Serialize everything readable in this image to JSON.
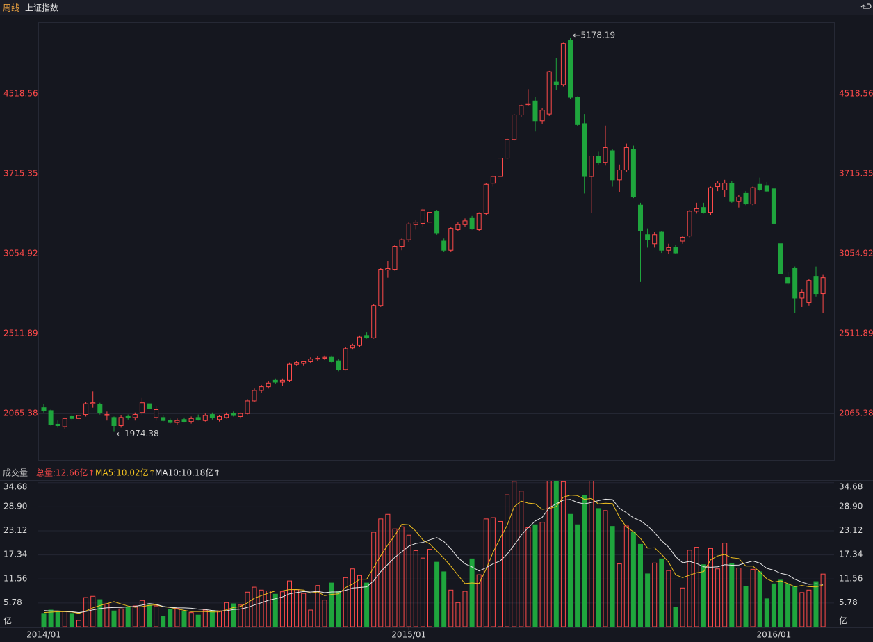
{
  "chart_data": [
    {
      "type": "candlestick",
      "period": "周线",
      "title": "上证指数",
      "log": true,
      "grid": true,
      "up_color": "#ff4a4a",
      "down_color": "#1fa53d",
      "ylim": [
        1843,
        5384
      ],
      "yticks": [
        2065.38,
        2511.89,
        3054.92,
        3715.35,
        4518.56
      ],
      "max_label": 5178.19,
      "min_label": 1974.38,
      "categories": [
        "2014/01",
        null,
        null,
        null,
        null,
        null,
        null,
        null,
        null,
        null,
        null,
        null,
        null,
        null,
        null,
        null,
        null,
        null,
        null,
        null,
        null,
        null,
        null,
        null,
        null,
        null,
        null,
        null,
        null,
        null,
        null,
        null,
        null,
        null,
        null,
        null,
        null,
        null,
        null,
        null,
        null,
        null,
        null,
        null,
        null,
        null,
        null,
        null,
        null,
        null,
        null,
        null,
        "2015/01",
        null,
        null,
        null,
        null,
        null,
        null,
        null,
        null,
        null,
        null,
        null,
        null,
        null,
        null,
        null,
        null,
        null,
        null,
        null,
        null,
        null,
        null,
        null,
        null,
        null,
        null,
        null,
        null,
        null,
        null,
        null,
        null,
        null,
        null,
        null,
        null,
        null,
        null,
        null,
        null,
        null,
        null,
        null,
        null,
        null,
        null,
        null,
        null,
        null,
        null,
        null,
        "2016/01",
        null,
        null,
        null,
        null,
        null,
        null,
        null
      ],
      "values": [
        [
          2095,
          2115,
          2070,
          2080
        ],
        [
          2080,
          2085,
          2005,
          2010
        ],
        [
          2012,
          2030,
          1995,
          2005
        ],
        [
          2000,
          2045,
          1990,
          2040
        ],
        [
          2050,
          2060,
          2030,
          2040
        ],
        [
          2040,
          2070,
          2030,
          2055
        ],
        [
          2060,
          2125,
          2050,
          2115
        ],
        [
          2115,
          2180,
          2095,
          2120
        ],
        [
          2110,
          2120,
          2060,
          2070
        ],
        [
          2055,
          2075,
          2030,
          2060
        ],
        [
          2045,
          2050,
          1974.38,
          2005
        ],
        [
          2005,
          2055,
          1995,
          2045
        ],
        [
          2050,
          2060,
          2035,
          2045
        ],
        [
          2045,
          2070,
          2030,
          2060
        ],
        [
          2070,
          2145,
          2060,
          2120
        ],
        [
          2115,
          2125,
          2080,
          2090
        ],
        [
          2045,
          2100,
          2030,
          2085
        ],
        [
          2045,
          2055,
          2025,
          2030
        ],
        [
          2030,
          2040,
          2015,
          2020
        ],
        [
          2020,
          2040,
          2010,
          2030
        ],
        [
          2035,
          2045,
          2020,
          2025
        ],
        [
          2025,
          2050,
          2015,
          2040
        ],
        [
          2045,
          2060,
          2030,
          2035
        ],
        [
          2030,
          2065,
          2025,
          2055
        ],
        [
          2060,
          2070,
          2035,
          2045
        ],
        [
          2035,
          2055,
          2025,
          2050
        ],
        [
          2045,
          2070,
          2040,
          2060
        ],
        [
          2065,
          2075,
          2050,
          2055
        ],
        [
          2050,
          2070,
          2040,
          2065
        ],
        [
          2065,
          2140,
          2060,
          2130
        ],
        [
          2130,
          2195,
          2125,
          2185
        ],
        [
          2185,
          2215,
          2170,
          2205
        ],
        [
          2205,
          2235,
          2195,
          2225
        ],
        [
          2240,
          2250,
          2220,
          2230
        ],
        [
          2230,
          2250,
          2210,
          2240
        ],
        [
          2240,
          2340,
          2230,
          2330
        ],
        [
          2330,
          2350,
          2320,
          2340
        ],
        [
          2335,
          2350,
          2320,
          2345
        ],
        [
          2345,
          2370,
          2335,
          2360
        ],
        [
          2360,
          2375,
          2350,
          2365
        ],
        [
          2365,
          2380,
          2355,
          2370
        ],
        [
          2370,
          2380,
          2340,
          2345
        ],
        [
          2350,
          2360,
          2290,
          2300
        ],
        [
          2300,
          2430,
          2295,
          2420
        ],
        [
          2425,
          2450,
          2415,
          2440
        ],
        [
          2440,
          2500,
          2430,
          2490
        ],
        [
          2500,
          2520,
          2480,
          2485
        ],
        [
          2485,
          2700,
          2480,
          2690
        ],
        [
          2690,
          2950,
          2680,
          2940
        ],
        [
          2935,
          3000,
          2880,
          2945
        ],
        [
          2940,
          3120,
          2930,
          3110
        ],
        [
          3110,
          3170,
          3080,
          3160
        ],
        [
          3160,
          3300,
          3140,
          3285
        ],
        [
          3280,
          3320,
          3240,
          3300
        ],
        [
          3290,
          3410,
          3260,
          3400
        ],
        [
          3300,
          3420,
          3260,
          3380
        ],
        [
          3390,
          3400,
          3200,
          3210
        ],
        [
          3150,
          3170,
          3070,
          3080
        ],
        [
          3080,
          3260,
          3070,
          3250
        ],
        [
          3240,
          3300,
          3230,
          3280
        ],
        [
          3280,
          3330,
          3260,
          3310
        ],
        [
          3330,
          3350,
          3240,
          3250
        ],
        [
          3240,
          3380,
          3230,
          3370
        ],
        [
          3370,
          3630,
          3360,
          3620
        ],
        [
          3630,
          3700,
          3600,
          3690
        ],
        [
          3690,
          3870,
          3680,
          3860
        ],
        [
          3860,
          4050,
          3850,
          4040
        ],
        [
          4040,
          4300,
          4030,
          4290
        ],
        [
          4290,
          4400,
          4270,
          4390
        ],
        [
          4400,
          4570,
          4390,
          4410
        ],
        [
          4440,
          4480,
          4120,
          4230
        ],
        [
          4230,
          4360,
          4200,
          4340
        ],
        [
          4300,
          4780,
          4280,
          4770
        ],
        [
          4650,
          4930,
          4560,
          4620
        ],
        [
          4620,
          5120,
          4600,
          5110
        ],
        [
          5150,
          5178.19,
          4460,
          4480
        ],
        [
          4480,
          4490,
          4180,
          4190
        ],
        [
          4200,
          4300,
          3540,
          3690
        ],
        [
          3690,
          3880,
          3373,
          3880
        ],
        [
          3880,
          3920,
          3800,
          3820
        ],
        [
          3820,
          4180,
          3790,
          3960
        ],
        [
          3930,
          3950,
          3600,
          3660
        ],
        [
          3660,
          3800,
          3550,
          3750
        ],
        [
          3750,
          4000,
          3730,
          3960
        ],
        [
          3940,
          3980,
          3500,
          3510
        ],
        [
          3440,
          3460,
          2850,
          3230
        ],
        [
          3200,
          3250,
          3100,
          3160
        ],
        [
          3130,
          3220,
          3100,
          3200
        ],
        [
          3220,
          3230,
          3060,
          3080
        ],
        [
          3080,
          3130,
          3050,
          3100
        ],
        [
          3100,
          3120,
          3050,
          3060
        ],
        [
          3150,
          3190,
          3130,
          3180
        ],
        [
          3190,
          3400,
          3180,
          3390
        ],
        [
          3390,
          3460,
          3370,
          3410
        ],
        [
          3420,
          3460,
          3370,
          3380
        ],
        [
          3380,
          3600,
          3360,
          3590
        ],
        [
          3600,
          3650,
          3560,
          3630
        ],
        [
          3570,
          3660,
          3510,
          3630
        ],
        [
          3630,
          3650,
          3460,
          3470
        ],
        [
          3470,
          3530,
          3420,
          3510
        ],
        [
          3540,
          3560,
          3440,
          3450
        ],
        [
          3450,
          3600,
          3440,
          3590
        ],
        [
          3620,
          3680,
          3560,
          3570
        ],
        [
          3610,
          3640,
          3550,
          3560
        ],
        [
          3580,
          3590,
          3280,
          3290
        ],
        [
          3130,
          3140,
          2900,
          2910
        ],
        [
          2880,
          2920,
          2830,
          2840
        ],
        [
          2950,
          2960,
          2640,
          2740
        ],
        [
          2740,
          2800,
          2680,
          2780
        ],
        [
          2710,
          2870,
          2690,
          2860
        ],
        [
          2890,
          2960,
          2750,
          2770
        ],
        [
          2770,
          2900,
          2640,
          2880
        ]
      ]
    },
    {
      "type": "bar",
      "title": "成交量",
      "total_label": "总量:12.66亿↑",
      "total_color": "#ff4a4a",
      "grid": true,
      "ylim": [
        0,
        35.06
      ],
      "yticks": [
        {
          "value": 0,
          "label": "亿"
        },
        5.78,
        11.56,
        17.34,
        23.12,
        {
          "value": 28.9,
          "label": "28.90"
        },
        34.68
      ],
      "values": [
        3.2,
        4.0,
        3.6,
        3.7,
        3.2,
        1.5,
        7.0,
        7.3,
        6.5,
        5.5,
        3.8,
        4.3,
        4.8,
        5.0,
        6.3,
        5.2,
        5.0,
        2.5,
        4.2,
        4.4,
        3.6,
        3.4,
        2.8,
        4.0,
        3.9,
        3.8,
        5.8,
        5.5,
        5.2,
        8.3,
        9.5,
        8.8,
        8.6,
        7.8,
        8.4,
        11.0,
        8.9,
        8.0,
        4.0,
        9.9,
        6.4,
        10.5,
        8.6,
        11.8,
        13.9,
        12.3,
        10.5,
        22.7,
        25.9,
        27.0,
        23.5,
        24.0,
        22.0,
        18.3,
        16.5,
        18.6,
        15.5,
        13.2,
        8.8,
        5.8,
        8.5,
        16.3,
        12.5,
        25.9,
        26.2,
        25.3,
        31.7,
        35.1,
        32.6,
        23.8,
        24.5,
        25.1,
        36.0,
        35.0,
        35.0,
        27.0,
        24.5,
        31.6,
        36.0,
        28.4,
        27.9,
        24.1,
        15.1,
        24.2,
        22.8,
        19.8,
        12.7,
        15.3,
        16.3,
        13.5,
        4.6,
        9.3,
        18.4,
        19.1,
        14.9,
        18.8,
        13.9,
        20.1,
        15.1,
        14.1,
        9.7,
        13.8,
        13.2,
        6.7,
        10.3,
        11.2,
        10.3,
        9.6,
        8.2,
        8.8,
        10.84,
        12.66
      ],
      "series": [
        {
          "name": "MA5:10.02亿↑",
          "color": "#f0c020",
          "values": [
            3.4,
            3.5,
            3.6,
            3.6,
            3.54,
            3.2,
            3.8,
            4.54,
            5.1,
            5.56,
            6.02,
            5.48,
            4.98,
            4.68,
            4.84,
            5.12,
            5.26,
            4.8,
            4.64,
            4.26,
            3.94,
            3.62,
            3.68,
            3.64,
            3.54,
            3.58,
            4.06,
            4.6,
            4.84,
            5.72,
            6.86,
            7.46,
            8.08,
            8.6,
            8.62,
            8.92,
            8.94,
            8.82,
            8.06,
            8.36,
            7.44,
            7.76,
            7.88,
            9.44,
            10.24,
            11.42,
            11.42,
            14.24,
            17.06,
            19.68,
            21.92,
            24.62,
            24.48,
            22.96,
            20.86,
            19.88,
            18.18,
            16.42,
            14.52,
            12.38,
            10.36,
            10.52,
            10.38,
            13.8,
            17.88,
            21.24,
            24.32,
            28.84,
            30.18,
            29.7,
            29.54,
            28.22,
            28.4,
            28.88,
            31.12,
            31.62,
            31.5,
            30.62,
            30.82,
            29.5,
            29.68,
            29.6,
            26.3,
            23.94,
            22.82,
            21.2,
            18.92,
            18.96,
            17.38,
            15.52,
            12.48,
            11.8,
            12.42,
            12.98,
            13.26,
            16.1,
            17.02,
            17.36,
            16.56,
            16.4,
            14.58,
            14.56,
            13.18,
            11.5,
            10.74,
            11.04,
            10.34,
            9.62,
            9.92,
            9.62,
            9.55,
            10.02
          ]
        },
        {
          "name": "MA10:10.18亿↑",
          "color": "#e6e6e6",
          "values": [
            3.9,
            3.8,
            3.8,
            3.7,
            3.6,
            3.4,
            3.65,
            4.05,
            4.35,
            4.55,
            4.61,
            4.64,
            4.76,
            4.89,
            5.2,
            5.57,
            5.37,
            4.89,
            4.66,
            4.55,
            4.53,
            4.44,
            4.24,
            4.14,
            3.9,
            3.76,
            3.84,
            4.14,
            4.24,
            4.63,
            5.22,
            5.76,
            6.34,
            6.72,
            7.17,
            7.89,
            8.2,
            8.45,
            8.33,
            8.49,
            8.18,
            8.35,
            8.35,
            8.75,
            9.3,
            9.43,
            9.59,
            11.06,
            13.25,
            14.96,
            16.67,
            18.02,
            19.36,
            20.01,
            20.27,
            20.9,
            21.4,
            20.45,
            18.74,
            16.62,
            15.12,
            14.35,
            13.4,
            14.16,
            15.13,
            15.8,
            17.42,
            19.61,
            21.99,
            23.79,
            25.39,
            26.27,
            28.62,
            29.53,
            30.41,
            30.58,
            29.86,
            29.51,
            29.85,
            30.31,
            30.65,
            30.55,
            28.46,
            27.38,
            26.16,
            25.44,
            24.26,
            22.63,
            20.66,
            19.17,
            16.84,
            15.36,
            15.69,
            15.18,
            14.39,
            14.29,
            14.41,
            14.89,
            14.77,
            14.83,
            15.34,
            15.79,
            15.27,
            14.03,
            13.57,
            12.81,
            12.45,
            11.4,
            10.71,
            10.18,
            10.3,
            10.18
          ]
        }
      ]
    }
  ]
}
